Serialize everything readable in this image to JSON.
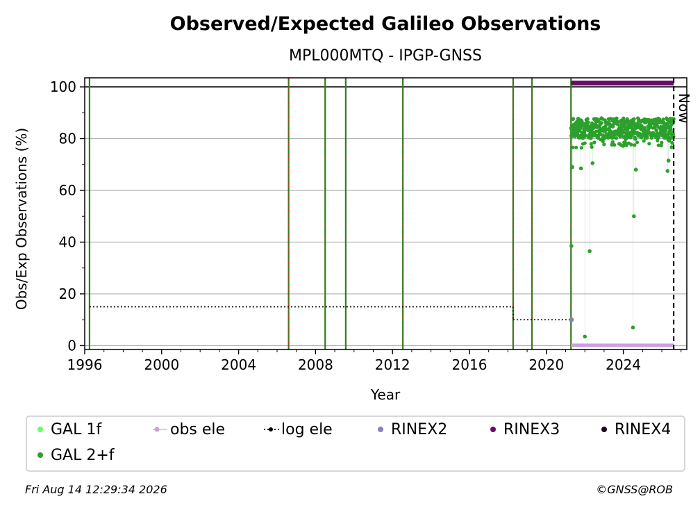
{
  "chart_data": {
    "type": "scatter",
    "title": "Observed/Expected Galileo Observations",
    "subtitle": "MPL000MTQ - IPGP-GNSS",
    "xlabel": "Year",
    "ylabel": "Obs/Exp Observations (%)",
    "xlim": [
      1996.0,
      2027.3
    ],
    "ylim": [
      -1.5,
      103.5
    ],
    "xticks": [
      1996,
      2000,
      2004,
      2008,
      2012,
      2016,
      2020,
      2024
    ],
    "yticks": [
      0,
      20,
      40,
      60,
      80,
      100
    ],
    "grid": "horizontal",
    "reference_line_y": 100,
    "now_x": 2026.62,
    "now_label": "Now",
    "event_lines_x": [
      1996.25,
      2006.6,
      2008.5,
      2009.57,
      2012.54,
      2018.27,
      2019.25,
      2021.28
    ],
    "log_ele_steps": [
      {
        "x_start": 1996.25,
        "x_end": 2018.27,
        "y": 15
      },
      {
        "x_start": 2018.27,
        "x_end": 2021.28,
        "y": 10
      }
    ],
    "series": [
      {
        "name": "GAL 1f",
        "color": "#66ff66",
        "points": []
      },
      {
        "name": "GAL 2+f",
        "color": "#2ca02c",
        "range_start": 2021.28,
        "range_end": 2026.62,
        "typical_range": [
          76,
          88
        ],
        "outliers": [
          [
            2021.3,
            38.5
          ],
          [
            2021.35,
            69
          ],
          [
            2022.0,
            3.5
          ],
          [
            2022.25,
            36.5
          ],
          [
            2021.8,
            68.5
          ],
          [
            2022.4,
            70.5
          ],
          [
            2024.5,
            7
          ],
          [
            2024.55,
            50
          ],
          [
            2024.65,
            68
          ],
          [
            2026.3,
            67.5
          ],
          [
            2026.35,
            71.5
          ]
        ]
      },
      {
        "name": "obs ele",
        "color": "#c9a0dc",
        "y": 0,
        "range_start": 2021.28,
        "range_end": 2026.62
      },
      {
        "name": "log ele",
        "color": "#000000"
      },
      {
        "name": "RINEX2",
        "color": "#8a7fc0",
        "points": [
          [
            2021.3,
            10
          ]
        ]
      },
      {
        "name": "RINEX3",
        "color": "#6a0a6a",
        "y": 101.5,
        "range_start": 2021.28,
        "range_end": 2026.62
      },
      {
        "name": "RINEX4",
        "color": "#1a0a1a",
        "points": []
      }
    ]
  },
  "legend": {
    "items": [
      {
        "label": "GAL 1f",
        "color": "#66ff66",
        "style": "dot"
      },
      {
        "label": "obs ele",
        "color": "#c9a0dc",
        "style": "line-dot"
      },
      {
        "label": "log ele",
        "color": "#000000",
        "style": "dotted-dot"
      },
      {
        "label": "RINEX2",
        "color": "#8a7fc0",
        "style": "dot"
      },
      {
        "label": "RINEX3",
        "color": "#6a0a6a",
        "style": "dot"
      },
      {
        "label": "RINEX4",
        "color": "#1a0a1a",
        "style": "dot"
      },
      {
        "label": "GAL 2+f",
        "color": "#2ca02c",
        "style": "dot"
      }
    ]
  },
  "footer": {
    "timestamp": "Fri Aug 14 12:29:34 2026",
    "credit": "©GNSS@ROB"
  }
}
